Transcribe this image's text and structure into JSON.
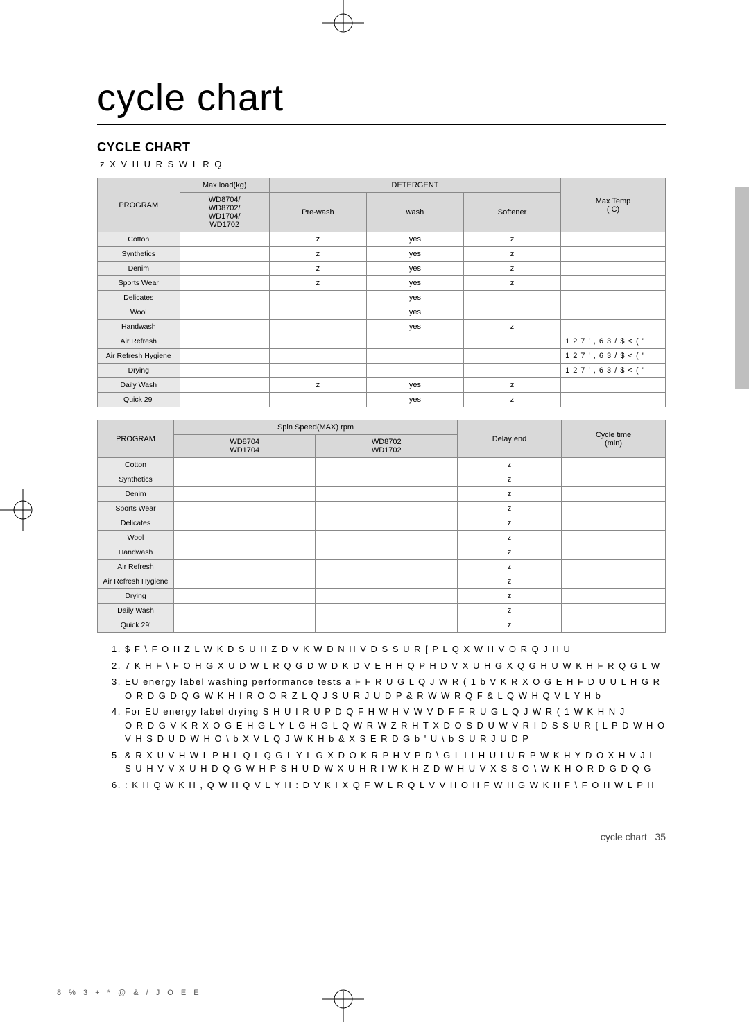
{
  "page_title": "cycle chart",
  "section_heading": "CYCLE CHART",
  "user_option_line": "z  X V H U   R S W L R Q",
  "table1": {
    "headers": {
      "program": "PROGRAM",
      "maxload": "Max load(kg)",
      "models_sub": "WD8704/\nWD8702/\nWD1704/\nWD1702",
      "detergent": "DETERGENT",
      "prewash": "Pre-wash",
      "wash": "wash",
      "softener": "Softener",
      "maxtemp": "Max Temp\n( C)"
    },
    "rows": [
      {
        "program": "Cotton",
        "maxload": "",
        "prewash": "z",
        "wash": "yes",
        "softener": "z",
        "maxtemp": ""
      },
      {
        "program": "Synthetics",
        "maxload": "",
        "prewash": "z",
        "wash": "yes",
        "softener": "z",
        "maxtemp": ""
      },
      {
        "program": "Denim",
        "maxload": "",
        "prewash": "z",
        "wash": "yes",
        "softener": "z",
        "maxtemp": ""
      },
      {
        "program": "Sports Wear",
        "maxload": "",
        "prewash": "z",
        "wash": "yes",
        "softener": "z",
        "maxtemp": ""
      },
      {
        "program": "Delicates",
        "maxload": "",
        "prewash": "",
        "wash": "yes",
        "softener": "",
        "maxtemp": ""
      },
      {
        "program": "Wool",
        "maxload": "",
        "prewash": "",
        "wash": "yes",
        "softener": "",
        "maxtemp": ""
      },
      {
        "program": "Handwash",
        "maxload": "",
        "prewash": "",
        "wash": "yes",
        "softener": "z",
        "maxtemp": ""
      },
      {
        "program": "Air Refresh",
        "maxload": "",
        "prewash": "",
        "wash": "",
        "softener": "",
        "maxtemp": "1 2 7  ' , 6 3 / $ < ( '"
      },
      {
        "program": "Air Refresh Hygiene",
        "maxload": "",
        "prewash": "",
        "wash": "",
        "softener": "",
        "maxtemp": "1 2 7  ' , 6 3 / $ < ( '"
      },
      {
        "program": "Drying",
        "maxload": "",
        "prewash": "",
        "wash": "",
        "softener": "",
        "maxtemp": "1 2 7  ' , 6 3 / $ < ( '"
      },
      {
        "program": "Daily Wash",
        "maxload": "",
        "prewash": "z",
        "wash": "yes",
        "softener": "z",
        "maxtemp": ""
      },
      {
        "program": "Quick 29'",
        "maxload": "",
        "prewash": "",
        "wash": "yes",
        "softener": "z",
        "maxtemp": ""
      }
    ]
  },
  "table2": {
    "headers": {
      "program": "PROGRAM",
      "spin": "Spin Speed(MAX) rpm",
      "mA": "WD8704\nWD1704",
      "mB": "WD8702\nWD1702",
      "delay": "Delay end",
      "cycle": "Cycle time\n(min)"
    },
    "rows": [
      {
        "program": "Cotton",
        "a": "",
        "b": "",
        "delay": "z",
        "cycle": ""
      },
      {
        "program": "Synthetics",
        "a": "",
        "b": "",
        "delay": "z",
        "cycle": ""
      },
      {
        "program": "Denim",
        "a": "",
        "b": "",
        "delay": "z",
        "cycle": ""
      },
      {
        "program": "Sports Wear",
        "a": "",
        "b": "",
        "delay": "z",
        "cycle": ""
      },
      {
        "program": "Delicates",
        "a": "",
        "b": "",
        "delay": "z",
        "cycle": ""
      },
      {
        "program": "Wool",
        "a": "",
        "b": "",
        "delay": "z",
        "cycle": ""
      },
      {
        "program": "Handwash",
        "a": "",
        "b": "",
        "delay": "z",
        "cycle": ""
      },
      {
        "program": "Air Refresh",
        "a": "",
        "b": "",
        "delay": "z",
        "cycle": ""
      },
      {
        "program": "Air Refresh Hygiene",
        "a": "",
        "b": "",
        "delay": "z",
        "cycle": ""
      },
      {
        "program": "Drying",
        "a": "",
        "b": "",
        "delay": "z",
        "cycle": ""
      },
      {
        "program": "Daily Wash",
        "a": "",
        "b": "",
        "delay": "z",
        "cycle": ""
      },
      {
        "program": "Quick 29'",
        "a": "",
        "b": "",
        "delay": "z",
        "cycle": ""
      }
    ]
  },
  "notes": [
    "$   F \\ F O H   Z L W K   D   S U H Z D V K   W D N H V   D S S U R [         P L Q X W H V   O R Q J H U",
    "7 K H   F \\ F O H   G X U D W L R Q   G D W D   K D V   E H H Q   P H D V X U H G   X Q G H U   W K H   F R Q G L W",
    "EU energy label washing performance tests a F F R U G L Q J   W R   ( 1           b V K R X O G   E H   F D U U L H G   R\nO R D G   D Q G   W K H   I R O O R Z L Q J   S U R J U D P   & R W W R Q       F &     L Q W H Q V L Y H   b",
    "For EU energy label drying  S H U I R U P D Q F H   W H V W V   D F F R U G L Q J   W R   ( 1           W K H       N J\nO R D G   V K R X O G   E H   G L Y L G H G   L Q W R   W Z R   H T X D O   S D U W V   R I   D S S U R [ L P D W H O\nV H S D U D W H O \\ b X V L Q J   W K H b & X S E R D G b ' U \\ b S U R J U D P",
    "& R X U V H   W L P H   L Q   L Q G L Y L G X D O   K R P H V   P D \\   G L I I H U   I U R P   W K H   Y D O X H V   J L\nS U H V V X U H   D Q G   W H P S H U D W X U H   R I   W K H   Z D W H U   V X S S O \\     W K H   O R D G   D Q G",
    ": K H Q   W K H   , Q W H Q V L Y H   : D V K   I X Q F W L R Q   L V   V H O H F W H G     W K H   F \\ F O H   W L P H"
  ],
  "page_footer": "cycle chart _35",
  "print_footer": "8 %     3 +       *   @ & /   J O E E",
  "colors": {
    "header_bg": "#d9d9d9",
    "prog_bg": "#e8e8e8",
    "border": "#888888",
    "tab_bg": "#bfbfbf"
  }
}
